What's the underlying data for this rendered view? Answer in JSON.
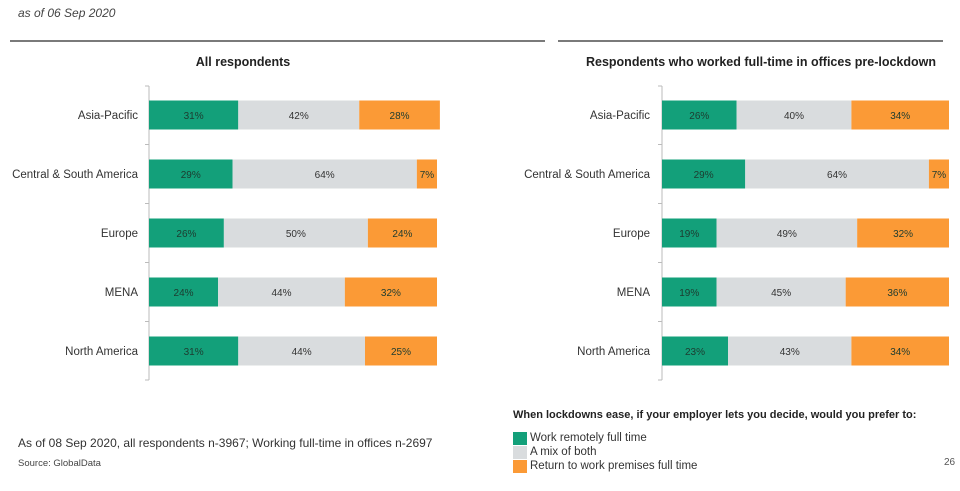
{
  "header": {
    "date_note": "as of 06 Sep 2020"
  },
  "colors": {
    "remote": "#13a07a",
    "mix": "#d9dcde",
    "return": "#fb9a36",
    "axis": "#bbbbbb",
    "label_text": "#1d3b2f"
  },
  "chart_data": [
    {
      "type": "bar",
      "orientation": "horizontal-stacked-100",
      "title": "All respondents",
      "categories": [
        "Asia-Pacific",
        "Central & South America",
        "Europe",
        "MENA",
        "North America"
      ],
      "series": [
        {
          "name": "Work remotely full time",
          "values": [
            31,
            29,
            26,
            24,
            31
          ]
        },
        {
          "name": "A mix of both",
          "values": [
            42,
            64,
            50,
            44,
            44
          ]
        },
        {
          "name": "Return to work premises full time",
          "values": [
            28,
            7,
            24,
            32,
            25
          ]
        }
      ],
      "data_labels": [
        [
          "31%",
          "42%",
          "28%"
        ],
        [
          "29%",
          "64%",
          "7%"
        ],
        [
          "26%",
          "50%",
          "24%"
        ],
        [
          "24%",
          "44%",
          "32%"
        ],
        [
          "31%",
          "44%",
          "25%"
        ]
      ],
      "xlabel": "",
      "ylabel": "",
      "xlim": [
        0,
        100
      ],
      "grid": false,
      "legend": "bottom-right"
    },
    {
      "type": "bar",
      "orientation": "horizontal-stacked-100",
      "title": "Respondents who worked full-time in offices pre-lockdown",
      "categories": [
        "Asia-Pacific",
        "Central & South America",
        "Europe",
        "MENA",
        "North America"
      ],
      "series": [
        {
          "name": "Work remotely full time",
          "values": [
            26,
            29,
            19,
            19,
            23
          ]
        },
        {
          "name": "A mix of both",
          "values": [
            40,
            64,
            49,
            45,
            43
          ]
        },
        {
          "name": "Return to work premises full time",
          "values": [
            34,
            7,
            32,
            36,
            34
          ]
        }
      ],
      "data_labels": [
        [
          "26%",
          "40%",
          "34%"
        ],
        [
          "29%",
          "64%",
          "7%"
        ],
        [
          "19%",
          "49%",
          "32%"
        ],
        [
          "19%",
          "45%",
          "36%"
        ],
        [
          "23%",
          "43%",
          "34%"
        ]
      ],
      "xlabel": "",
      "ylabel": "",
      "xlim": [
        0,
        100
      ],
      "grid": false,
      "legend": "bottom-right"
    }
  ],
  "legend": {
    "title": "When lockdowns ease, if your employer lets you decide, would you prefer to:",
    "items": [
      {
        "label": "Work remotely full time",
        "color": "#13a07a"
      },
      {
        "label": "A mix of both",
        "color": "#d9dcde"
      },
      {
        "label": "Return to work premises full time",
        "color": "#fb9a36"
      }
    ]
  },
  "footer": {
    "note": "As of 08 Sep 2020, all respondents n-3967; Working full-time in offices n-2697",
    "source": "Source: GlobalData",
    "page_number": "26"
  }
}
